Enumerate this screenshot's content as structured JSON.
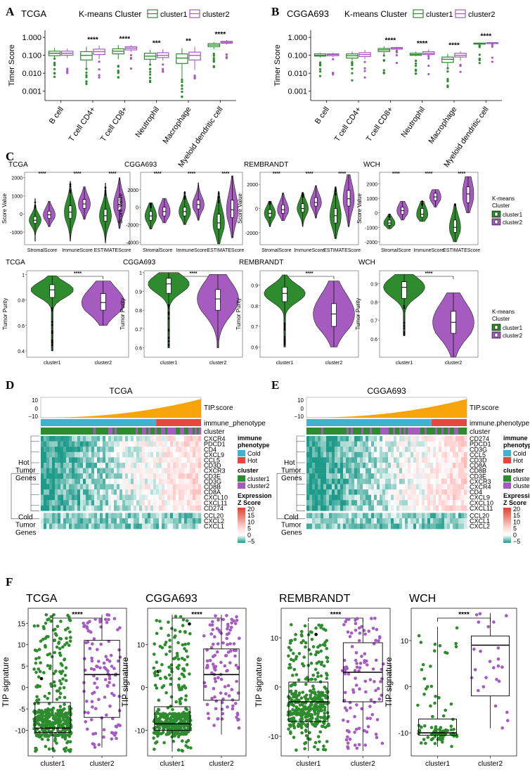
{
  "colors": {
    "green": "#2e8b2e",
    "purple": "#a55bc0",
    "orange": "#f7a40a",
    "cold_bar": "#3fb2cf",
    "hot_bar": "#e8483c",
    "teal": "#1e9a8a",
    "red": "#e04030",
    "black": "#000000"
  },
  "panels": {
    "A": "A",
    "B": "B",
    "C": "C",
    "D": "D",
    "E": "E",
    "F": "F"
  },
  "legend": {
    "kmeans": "K-means Cluster",
    "cluster1": "cluster1",
    "cluster2": "cluster2",
    "kmeans_stack_1": "K-means",
    "kmeans_stack_2": "Cluster"
  },
  "chart_data": [
    {
      "id": "A",
      "type": "boxplot",
      "title": "TCGA",
      "ylabel": "Timer Score",
      "yscale": "log",
      "yticks": [
        "0.001",
        "0.010",
        "0.100",
        "1.000"
      ],
      "ylim": [
        0.0003,
        2.5
      ],
      "categories": [
        "B cell",
        "T cell CD4+",
        "T cell CD8+",
        "Neutrophil",
        "Macrophage",
        "Myeloid dendritic cell"
      ],
      "significance": [
        "",
        "****",
        "****",
        "***",
        "**",
        "****"
      ],
      "series": [
        {
          "name": "cluster1",
          "boxes": [
            [
              0.065,
              0.095,
              0.13,
              0.17,
              0.26
            ],
            [
              0.02,
              0.055,
              0.1,
              0.16,
              0.3
            ],
            [
              0.06,
              0.12,
              0.17,
              0.23,
              0.38
            ],
            [
              0.035,
              0.06,
              0.09,
              0.13,
              0.2
            ],
            [
              0.005,
              0.035,
              0.07,
              0.12,
              0.25
            ],
            [
              0.22,
              0.3,
              0.37,
              0.45,
              0.55
            ]
          ]
        },
        {
          "name": "cluster2",
          "boxes": [
            [
              0.07,
              0.1,
              0.13,
              0.17,
              0.24
            ],
            [
              0.06,
              0.11,
              0.16,
              0.22,
              0.35
            ],
            [
              0.15,
              0.2,
              0.25,
              0.3,
              0.38
            ],
            [
              0.05,
              0.075,
              0.1,
              0.14,
              0.22
            ],
            [
              0.015,
              0.055,
              0.1,
              0.15,
              0.3
            ],
            [
              0.4,
              0.47,
              0.53,
              0.6,
              0.7
            ]
          ]
        }
      ]
    },
    {
      "id": "B",
      "type": "boxplot",
      "title": "CGGA693",
      "ylabel": "Timer Score",
      "yscale": "log",
      "yticks": [
        "0.001",
        "0.010",
        "0.100",
        "1.000"
      ],
      "ylim": [
        0.0003,
        2.5
      ],
      "categories": [
        "B cell",
        "T cell CD4+",
        "T cell CD8+",
        "Neutrophil",
        "Macrophage",
        "Myeloid dendritic cell"
      ],
      "significance": [
        "",
        "",
        "****",
        "****",
        "****",
        "****"
      ],
      "series": [
        {
          "name": "cluster1",
          "boxes": [
            [
              0.075,
              0.09,
              0.1,
              0.12,
              0.14
            ],
            [
              0.05,
              0.07,
              0.095,
              0.12,
              0.16
            ],
            [
              0.1,
              0.16,
              0.2,
              0.24,
              0.32
            ],
            [
              0.09,
              0.1,
              0.11,
              0.13,
              0.16
            ],
            [
              0.02,
              0.04,
              0.06,
              0.08,
              0.12
            ],
            [
              0.38,
              0.42,
              0.45,
              0.48,
              0.52
            ]
          ]
        },
        {
          "name": "cluster2",
          "boxes": [
            [
              0.08,
              0.095,
              0.11,
              0.12,
              0.14
            ],
            [
              0.06,
              0.085,
              0.11,
              0.14,
              0.2
            ],
            [
              0.18,
              0.22,
              0.25,
              0.27,
              0.3
            ],
            [
              0.09,
              0.11,
              0.13,
              0.16,
              0.21
            ],
            [
              0.05,
              0.08,
              0.1,
              0.13,
              0.17
            ],
            [
              0.42,
              0.45,
              0.48,
              0.51,
              0.55
            ]
          ]
        }
      ]
    },
    {
      "id": "C-top",
      "type": "violin",
      "ylabel": "Score Value",
      "categories": [
        "StromalScore",
        "ImmuneScore",
        "ESTIMATEScore"
      ],
      "significance": "****",
      "datasets": [
        {
          "title": "TCGA",
          "yticks": [
            -1000,
            0,
            1000,
            2000
          ],
          "ylim": [
            -1700,
            2300
          ],
          "cluster1": [
            [
              -1500,
              -520,
              -350,
              -150,
              850
            ],
            [
              -1500,
              -250,
              100,
              450,
              1800
            ],
            [
              -1600,
              -400,
              -100,
              250,
              1700
            ]
          ],
          "cluster2": [
            [
              -700,
              -250,
              -50,
              150,
              700
            ],
            [
              -300,
              300,
              550,
              800,
              1500
            ],
            [
              -800,
              200,
              500,
              900,
              2000
            ]
          ]
        },
        {
          "title": "CGGA693",
          "yticks": [
            -4000,
            -2000,
            0,
            2000
          ],
          "ylim": [
            -4300,
            4000
          ],
          "cluster1": [
            [
              -2500,
              -1500,
              -1000,
              -500,
              500
            ],
            [
              -2000,
              -1000,
              -500,
              0,
              1800
            ],
            [
              -4200,
              -2500,
              -1800,
              -800,
              1800
            ]
          ],
          "cluster2": [
            [
              -1800,
              -1000,
              -500,
              0,
              1000
            ],
            [
              -1500,
              -200,
              300,
              800,
              2800
            ],
            [
              -3500,
              -1200,
              -300,
              800,
              3600
            ]
          ]
        },
        {
          "title": "REMBRANDT",
          "yticks": [
            -2000,
            0,
            2000
          ],
          "ylim": [
            -3000,
            3000
          ],
          "cluster1": [
            [
              -1500,
              -700,
              -400,
              -100,
              600
            ],
            [
              -1500,
              -300,
              0,
              400,
              1300
            ],
            [
              -2500,
              -1200,
              -600,
              0,
              1800
            ]
          ],
          "cluster2": [
            [
              -1000,
              -400,
              -100,
              300,
              1300
            ],
            [
              -800,
              200,
              500,
              900,
              1900
            ],
            [
              -1500,
              200,
              800,
              1500,
              2800
            ]
          ]
        },
        {
          "title": "WCH",
          "yticks": [
            -2000,
            -1000,
            0,
            1000,
            2000
          ],
          "ylim": [
            -2200,
            2800
          ],
          "cluster1": [
            [
              -1100,
              -850,
              -700,
              -500,
              -100
            ],
            [
              -600,
              -300,
              -100,
              300,
              800
            ],
            [
              -2000,
              -1350,
              -1000,
              -500,
              600
            ]
          ],
          "cluster2": [
            [
              -500,
              -100,
              150,
              400,
              800
            ],
            [
              400,
              850,
              1100,
              1350,
              1600
            ],
            [
              0,
              700,
              1300,
              1800,
              2500
            ]
          ]
        }
      ]
    },
    {
      "id": "C-bottom",
      "type": "violin",
      "ylabel": "Tumor Purity",
      "categories": [
        "cluster1",
        "cluster2"
      ],
      "significance": "****",
      "datasets": [
        {
          "title": "TCGA",
          "yticks": [
            0.4,
            0.6,
            0.8,
            1.0
          ],
          "ylim": [
            0.35,
            1.03
          ],
          "cluster1": [
            0.4,
            0.82,
            0.88,
            0.92,
            0.99
          ],
          "cluster2": [
            0.6,
            0.72,
            0.78,
            0.85,
            0.95
          ]
        },
        {
          "title": "CGGA693",
          "yticks": [
            0.6,
            0.7,
            0.8,
            0.9,
            1.0
          ],
          "ylim": [
            0.55,
            1.01
          ],
          "cluster1": [
            0.6,
            0.89,
            0.94,
            0.97,
            1.0
          ],
          "cluster2": [
            0.6,
            0.8,
            0.86,
            0.91,
            0.99
          ]
        },
        {
          "title": "REMBRANDT",
          "yticks": [
            0.6,
            0.7,
            0.8,
            0.9
          ],
          "ylim": [
            0.55,
            0.97
          ],
          "cluster1": [
            0.6,
            0.82,
            0.86,
            0.89,
            0.95
          ],
          "cluster2": [
            0.6,
            0.7,
            0.76,
            0.81,
            0.92
          ]
        },
        {
          "title": "WCH",
          "yticks": [
            0.6,
            0.7,
            0.8,
            0.9
          ],
          "ylim": [
            0.5,
            0.97
          ],
          "cluster1": [
            0.62,
            0.82,
            0.88,
            0.91,
            0.95
          ],
          "cluster2": [
            0.5,
            0.63,
            0.69,
            0.75,
            0.85
          ]
        }
      ]
    },
    {
      "id": "D",
      "type": "heatmap",
      "title": "TCGA",
      "tip_yticks": [
        "10",
        "0",
        "−10"
      ],
      "tip_label": "TIP.score",
      "annotation_labels": [
        "immune_phenotype",
        "cluster"
      ],
      "immune_phenotype_split": 0.72,
      "rows": [
        "CXCR4",
        "PDCD1",
        "CD4",
        "CXCL9",
        "CCL5",
        "CD3D",
        "CXCR3",
        "CD3E",
        "CD3G",
        "CD8B",
        "CD8A",
        "CXCL10",
        "CXCL11",
        "CD274",
        "CCL20",
        "CXCL2",
        "CXCL1"
      ],
      "hot_count": 14,
      "group_labels": [
        [
          "Hot",
          "Tumor",
          "Genes"
        ],
        [
          "Cold",
          "Tumor",
          "Genes"
        ]
      ]
    },
    {
      "id": "E",
      "type": "heatmap",
      "title": "CGGA693",
      "tip_yticks": [
        "10",
        "0",
        "−10"
      ],
      "tip_label": "TIP.score",
      "annotation_labels": [
        "immune.phenotype",
        "cluster"
      ],
      "immune_phenotype_split": 0.78,
      "rows": [
        "CD274",
        "PDCD1",
        "CD3G",
        "CCL5",
        "CD3D",
        "CD8A",
        "CD8B",
        "CD3E",
        "CXCR3",
        "CXCR4",
        "CD4",
        "CXCL9",
        "CXCL10",
        "CXCL11",
        "CCL20",
        "CXCL1",
        "CXCL2"
      ],
      "hot_count": 14,
      "group_labels": [
        [
          "Hot",
          "Tumor",
          "Genes"
        ],
        [
          "Cold",
          "Tumor",
          "Genes"
        ]
      ]
    },
    {
      "id": "F",
      "type": "boxplot_jitter",
      "ylabel": "TIP signature",
      "categories": [
        "cluster1",
        "cluster2"
      ],
      "significance": "****",
      "datasets": [
        {
          "title": "TCGA",
          "yticks": [
            -10,
            -5,
            0,
            5,
            10,
            15
          ],
          "ylim": [
            -16,
            18.5
          ],
          "cluster1": [
            -15,
            -10.5,
            -9.5,
            -3.5,
            17
          ],
          "cluster2": [
            -14,
            -7,
            3,
            11,
            17
          ]
        },
        {
          "title": "CGGA693",
          "yticks": [
            -10,
            0,
            10
          ],
          "ylim": [
            -16,
            18.5
          ],
          "cluster1": [
            -15,
            -10,
            -8.5,
            -4.5,
            17
          ],
          "cluster2": [
            -11,
            -3,
            3,
            9,
            17
          ]
        },
        {
          "title": "REMBRANDT",
          "yticks": [
            -10,
            0,
            10
          ],
          "ylim": [
            -14,
            16
          ],
          "cluster1": [
            -13,
            -7,
            -3,
            1,
            13
          ],
          "cluster2": [
            -13,
            -3,
            3,
            9,
            14
          ]
        },
        {
          "title": "WCH",
          "yticks": [
            -10,
            0,
            10
          ],
          "ylim": [
            -15,
            17
          ],
          "cluster1": [
            -13,
            -10.5,
            -10,
            -7,
            13
          ],
          "cluster2": [
            -9,
            -2,
            9,
            11,
            16
          ]
        }
      ]
    }
  ],
  "heatmap_legend": {
    "immune_phenotype_title": [
      "immune",
      "phenotype"
    ],
    "cold": "Cold",
    "hot": "Hot",
    "cluster_title": "cluster",
    "cluster1": "cluster1",
    "cluster2": "cluster2",
    "expression_title": [
      "Expression",
      "Z Score"
    ],
    "ticks": [
      "20",
      "15",
      "10",
      "5",
      "0",
      "−5"
    ]
  }
}
